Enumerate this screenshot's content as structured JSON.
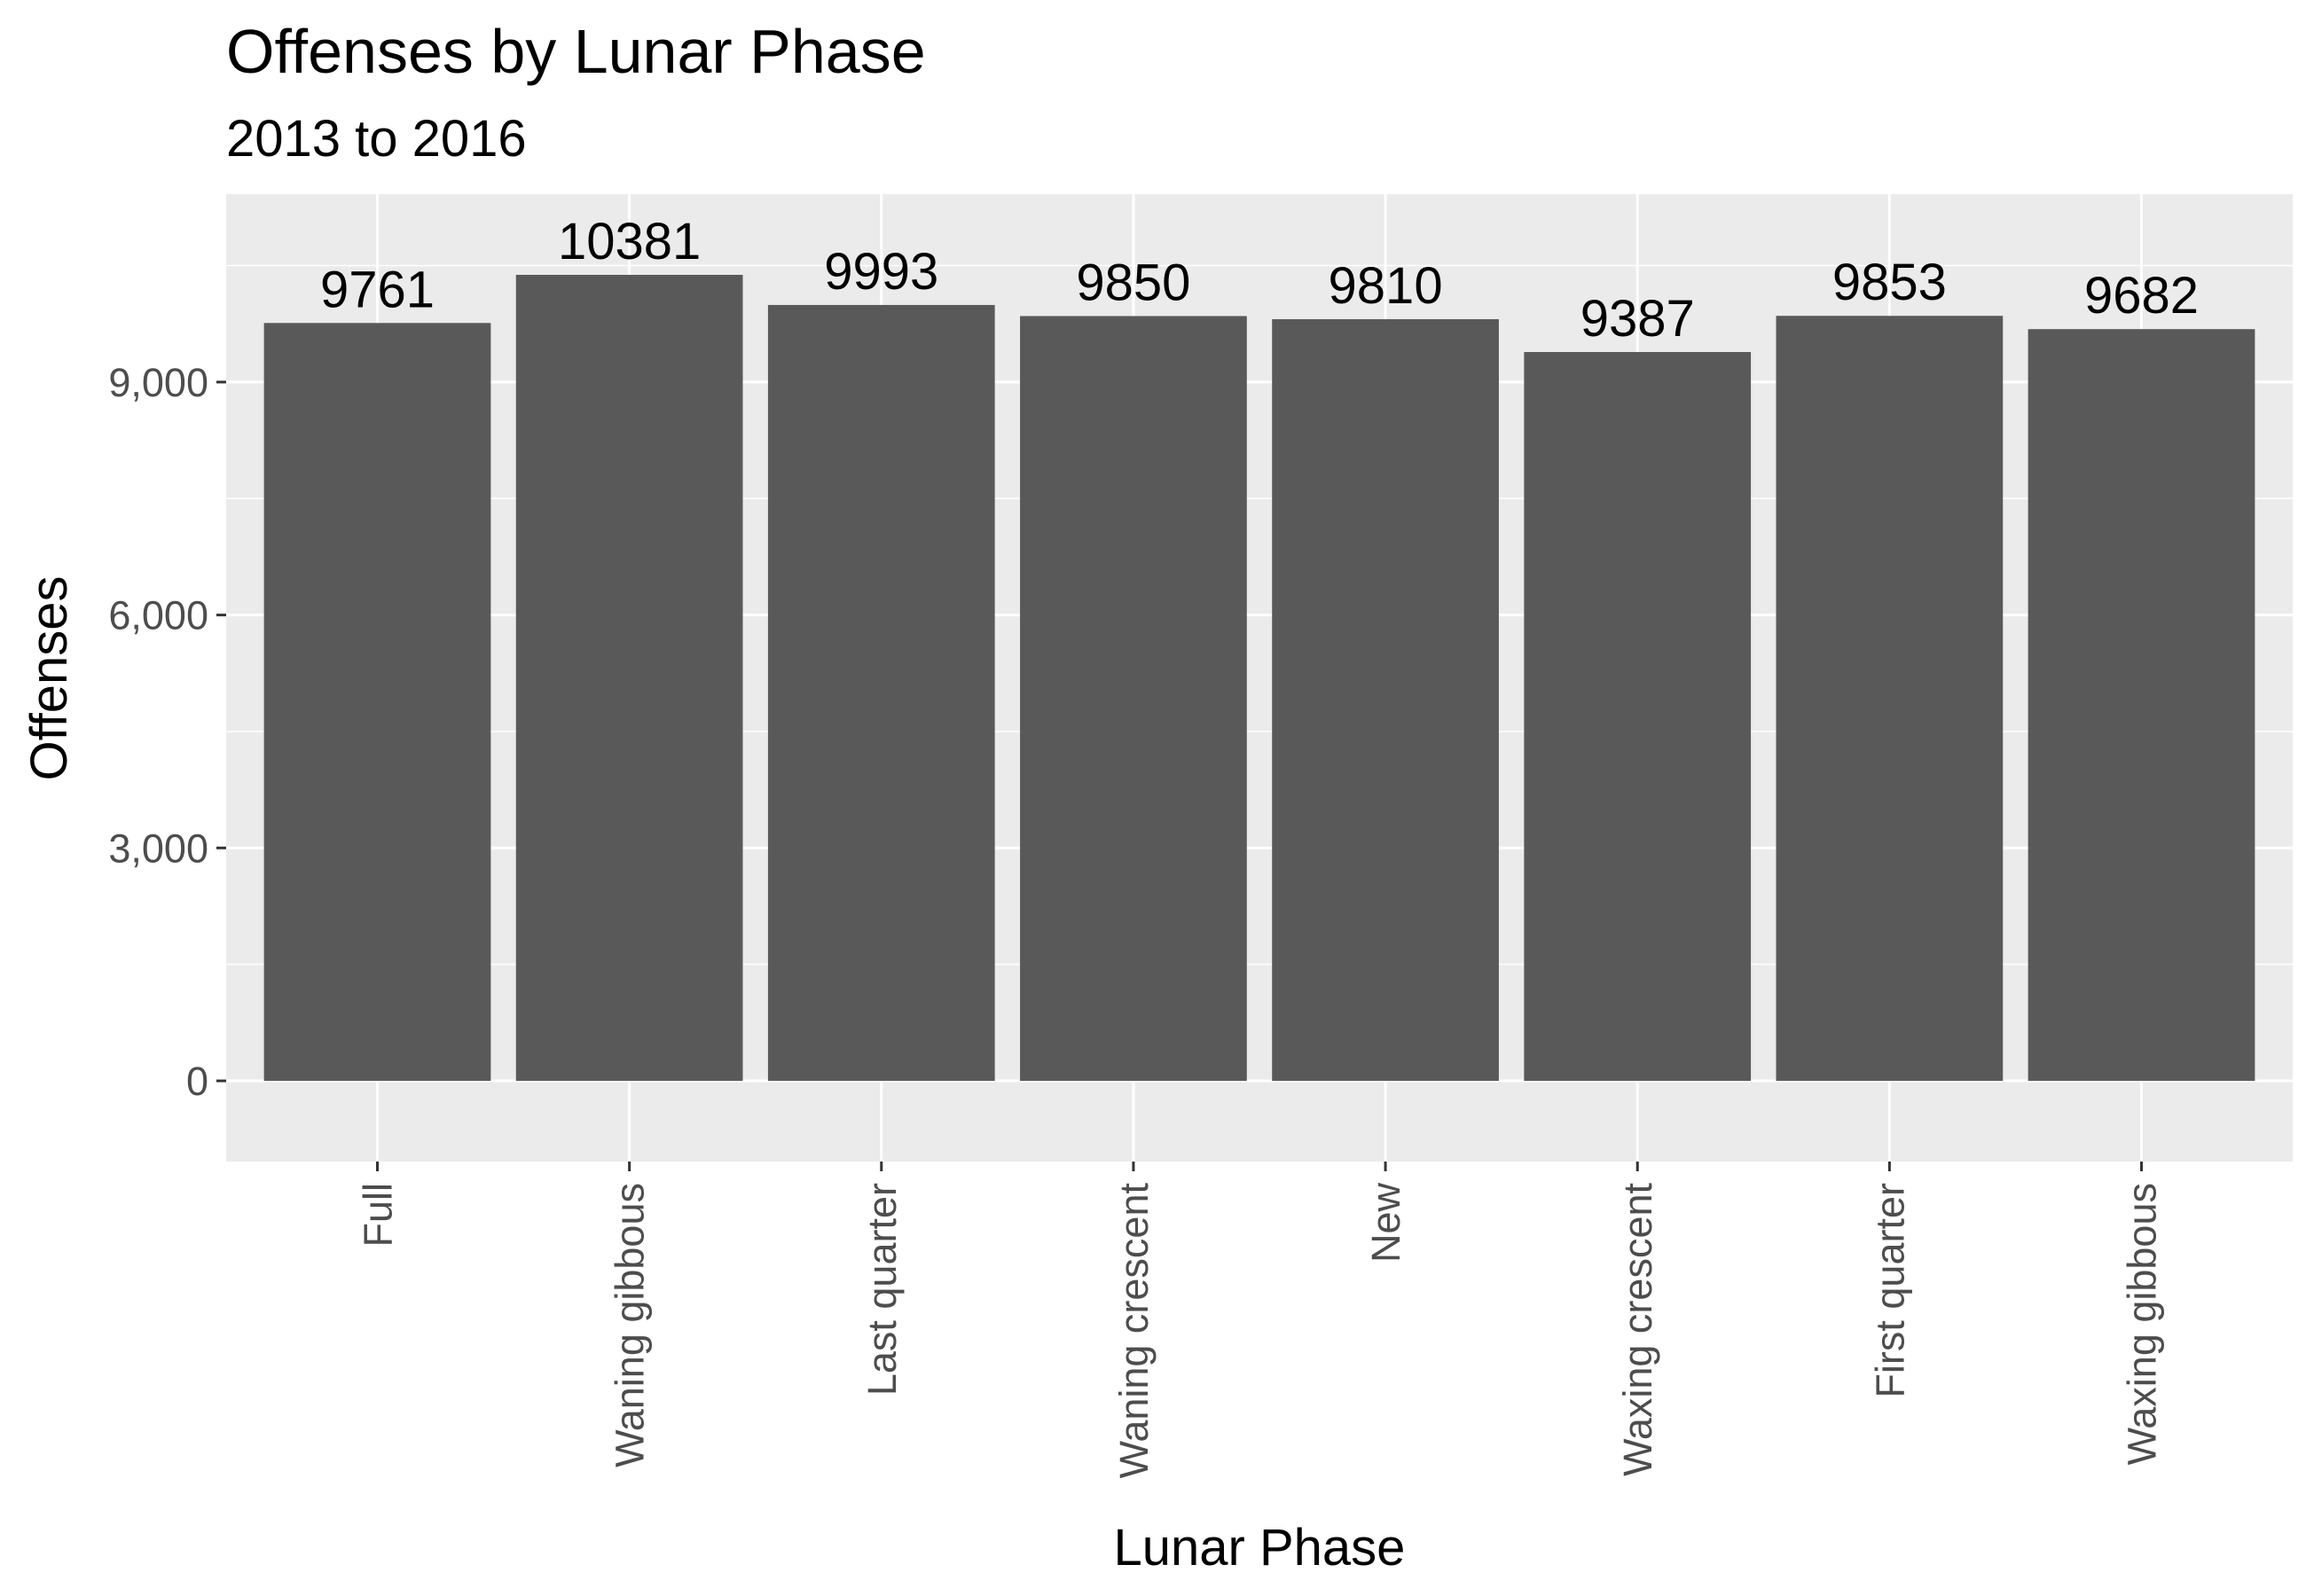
{
  "chart_data": {
    "type": "bar",
    "title": "Offenses by Lunar Phase",
    "subtitle": "2013 to 2016",
    "xlabel": "Lunar Phase",
    "ylabel": "Offenses",
    "categories": [
      "Full",
      "Waning gibbous",
      "Last quarter",
      "Waning crescent",
      "New",
      "Waxing crescent",
      "First quarter",
      "Waxing gibbous"
    ],
    "values": [
      9761,
      10381,
      9993,
      9850,
      9810,
      9387,
      9853,
      9682
    ],
    "data_labels": [
      "9761",
      "10381",
      "9993",
      "9850",
      "9810",
      "9387",
      "9853",
      "9682"
    ],
    "yticks": [
      0,
      3000,
      6000,
      9000
    ],
    "ytick_labels": [
      "0",
      "3,000",
      "6,000",
      "9,000"
    ],
    "ylim": [
      -1039,
      11420
    ],
    "grid": true,
    "legend": "none",
    "colors": {
      "bar": "#595959",
      "panel": "#ebebeb",
      "grid": "#ffffff",
      "tick_label": "#4d4d4d",
      "tick_mark": "#333333",
      "text": "#000000"
    }
  }
}
